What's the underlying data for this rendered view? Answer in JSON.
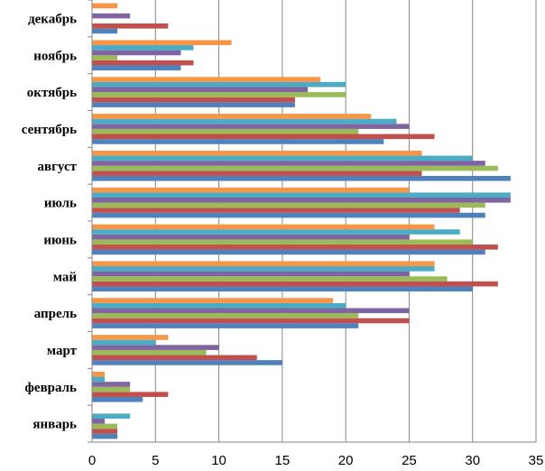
{
  "chart_data": {
    "type": "bar",
    "orientation": "horizontal",
    "categories": [
      "январь",
      "февраль",
      "март",
      "апрель",
      "май",
      "июнь",
      "июль",
      "август",
      "сентябрь",
      "октябрь",
      "ноябрь",
      "декабрь"
    ],
    "series": [
      {
        "color": "#4F81BD",
        "values": [
          2,
          4,
          15,
          21,
          30,
          31,
          31,
          33,
          23,
          16,
          7,
          2
        ]
      },
      {
        "color": "#C0504D",
        "values": [
          2,
          6,
          13,
          25,
          32,
          32,
          29,
          26,
          27,
          16,
          8,
          6
        ]
      },
      {
        "color": "#9BBB59",
        "values": [
          2,
          3,
          9,
          21,
          28,
          30,
          31,
          32,
          21,
          20,
          2,
          0
        ]
      },
      {
        "color": "#8064A2",
        "values": [
          1,
          3,
          10,
          25,
          25,
          25,
          33,
          31,
          25,
          17,
          7,
          3
        ]
      },
      {
        "color": "#4BACC6",
        "values": [
          3,
          1,
          5,
          20,
          27,
          29,
          33,
          30,
          24,
          20,
          8,
          0
        ]
      },
      {
        "color": "#F79646",
        "values": [
          0,
          1,
          6,
          19,
          27,
          27,
          25,
          26,
          22,
          18,
          11,
          2
        ]
      }
    ],
    "x_ticks": [
      "0",
      "5",
      "10",
      "15",
      "20",
      "25",
      "30",
      "35"
    ],
    "xlim": [
      0,
      35
    ],
    "grid": true,
    "legend": "none",
    "title": "",
    "xlabel": "",
    "ylabel": ""
  }
}
